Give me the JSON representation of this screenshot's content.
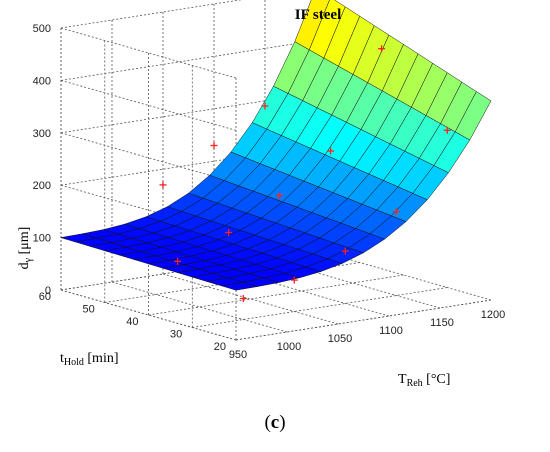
{
  "chart_data": {
    "type": "surface",
    "title": "IF steel",
    "zlabel": {
      "main": "d",
      "sub": "γ",
      "unit": " [μm]"
    },
    "ylabel": {
      "main": "t",
      "sub": "Hold",
      "unit": " [min]"
    },
    "xlabel": {
      "main": "T",
      "sub": "Reh",
      "unit": " [°C]"
    },
    "x_name": "T_Reh",
    "y_name": "t_Hold",
    "z_name": "d_γ",
    "xlim": [
      950,
      1200
    ],
    "ylim": [
      20,
      60
    ],
    "zlim": [
      0,
      500
    ],
    "x_ticks": [
      950,
      1000,
      1050,
      1100,
      1150,
      1200
    ],
    "y_ticks": [
      20,
      30,
      40,
      50,
      60
    ],
    "z_ticks": [
      0,
      100,
      200,
      300,
      400,
      500
    ],
    "grid": true,
    "colormap": "jet",
    "grid_size": {
      "nx": 12,
      "ny": 12
    },
    "surface_corners": [
      {
        "x": 950,
        "y": 60,
        "z": 100
      },
      {
        "x": 950,
        "y": 20,
        "z": 95
      },
      {
        "x": 1200,
        "y": 20,
        "z": 380
      },
      {
        "x": 1200,
        "y": 60,
        "z": 500
      }
    ],
    "measured_points": [
      {
        "x": 1000,
        "y": 30,
        "z": 40
      },
      {
        "x": 1050,
        "y": 30,
        "z": 60
      },
      {
        "x": 1100,
        "y": 30,
        "z": 100
      },
      {
        "x": 1150,
        "y": 30,
        "z": 160
      },
      {
        "x": 1200,
        "y": 30,
        "z": 300
      },
      {
        "x": 1000,
        "y": 45,
        "z": 75
      },
      {
        "x": 1050,
        "y": 45,
        "z": 115
      },
      {
        "x": 1100,
        "y": 45,
        "z": 170
      },
      {
        "x": 1150,
        "y": 45,
        "z": 240
      },
      {
        "x": 1200,
        "y": 45,
        "z": 420
      },
      {
        "x": 1050,
        "y": 60,
        "z": 170
      },
      {
        "x": 1100,
        "y": 60,
        "z": 230
      },
      {
        "x": 1150,
        "y": 60,
        "z": 290
      },
      {
        "x": 1200,
        "y": 60,
        "z": 500
      }
    ],
    "marker_color": "#ff2020"
  },
  "caption": {
    "open": "(",
    "label": "c",
    "close": ")"
  }
}
